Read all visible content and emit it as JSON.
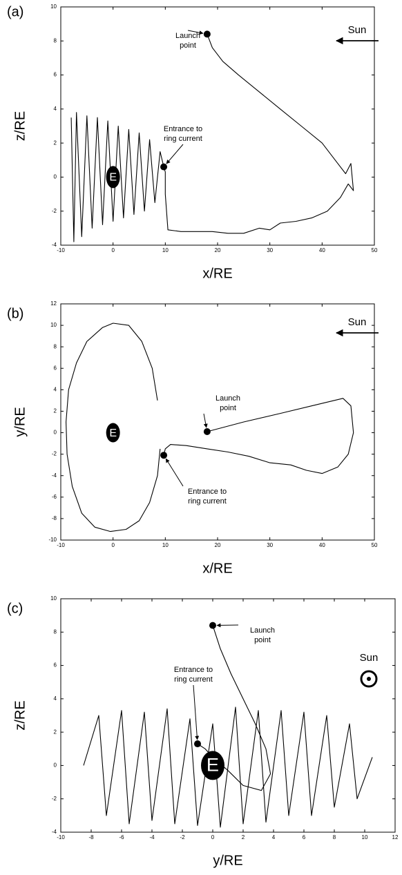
{
  "chart_data": [
    {
      "type": "line",
      "panel": "(a)",
      "xlabel": "x/RE",
      "ylabel": "z/RE",
      "xlim": [
        -10,
        50
      ],
      "ylim": [
        -4,
        10
      ],
      "xticks": [
        -10,
        0,
        10,
        20,
        30,
        40,
        50
      ],
      "yticks": [
        -4,
        -2,
        0,
        2,
        4,
        6,
        8,
        10
      ],
      "series": [
        {
          "color": "#000000",
          "x": [
            18,
            19,
            21,
            24,
            28,
            32,
            36,
            40,
            43,
            44.5,
            45.5,
            46,
            45,
            43.5,
            41,
            38,
            35,
            32,
            30,
            28,
            25,
            22,
            19,
            16,
            13,
            10.5,
            10,
            10,
            9.7
          ],
          "values": [
            8.4,
            7.6,
            6.8,
            6,
            5,
            4,
            3,
            2,
            0.8,
            0.2,
            0.8,
            -0.8,
            -0.4,
            -1.2,
            -2,
            -2.4,
            -2.6,
            -2.7,
            -3.1,
            -3,
            -3.3,
            -3.3,
            -3.2,
            -3.2,
            -3.2,
            -3.1,
            -1,
            0.3,
            0.6
          ]
        },
        {
          "color": "#000000",
          "x": [
            -8,
            -7.5,
            -7,
            -6,
            -5,
            -4,
            -3,
            -2,
            -1,
            0,
            1,
            2,
            3,
            4,
            5,
            6,
            7,
            8,
            9,
            9.7
          ],
          "values": [
            3.5,
            -3.8,
            3.8,
            -3.5,
            3.6,
            -3,
            3.5,
            -2.8,
            3.3,
            -2.6,
            3,
            -2.4,
            2.8,
            -2.2,
            2.6,
            -2,
            2.2,
            -1.5,
            1.5,
            0.6
          ]
        }
      ],
      "markers": {
        "x": [
          18,
          9.7
        ],
        "values": [
          8.4,
          0.6
        ]
      },
      "earth": {
        "x": 0,
        "y": 0,
        "label": "E"
      },
      "annotations": {
        "launch": [
          "Launch",
          "point"
        ],
        "entrance": [
          "Entrance to",
          "ring current"
        ],
        "sun": "Sun"
      }
    },
    {
      "type": "line",
      "panel": "(b)",
      "xlabel": "x/RE",
      "ylabel": "y/RE",
      "xlim": [
        -10,
        50
      ],
      "ylim": [
        -10,
        12
      ],
      "xticks": [
        -10,
        0,
        10,
        20,
        30,
        40,
        50
      ],
      "yticks": [
        -10,
        -8,
        -6,
        -4,
        -2,
        0,
        2,
        4,
        6,
        8,
        10,
        12
      ],
      "series": [
        {
          "color": "#000000",
          "x": [
            18,
            25,
            32,
            38,
            44,
            45.5,
            46,
            45,
            43,
            40,
            37,
            34,
            30,
            26,
            22,
            18,
            14,
            11,
            10,
            9.7
          ],
          "values": [
            0.1,
            1,
            1.8,
            2.5,
            3.2,
            2.5,
            0,
            -2,
            -3.2,
            -3.8,
            -3.5,
            -3,
            -2.8,
            -2.2,
            -1.8,
            -1.5,
            -1.2,
            -1.1,
            -1.5,
            -2.1
          ]
        },
        {
          "color": "#000000",
          "x": [
            9,
            8.5,
            7,
            5,
            2.5,
            -0.5,
            -3.5,
            -6,
            -7.8,
            -8.8,
            -9,
            -8.5,
            -7,
            -5,
            -2,
            0,
            3,
            5.5,
            7.5,
            8.5
          ],
          "values": [
            -1.5,
            -4,
            -6.5,
            -8.2,
            -9,
            -9.2,
            -8.8,
            -7.5,
            -5,
            -2,
            1,
            4,
            6.5,
            8.5,
            9.8,
            10.2,
            10,
            8.5,
            6,
            3
          ]
        }
      ],
      "markers": {
        "x": [
          18,
          9.7
        ],
        "values": [
          0.1,
          -2.1
        ]
      },
      "earth": {
        "x": 0,
        "y": 0,
        "label": "E"
      },
      "annotations": {
        "launch": [
          "Launch",
          "point"
        ],
        "entrance": [
          "Entrance to",
          "ring current"
        ],
        "sun": "Sun"
      }
    },
    {
      "type": "line",
      "panel": "(c)",
      "xlabel": "y/RE",
      "ylabel": "z/RE",
      "xlim": [
        -10,
        12
      ],
      "ylim": [
        -4,
        10
      ],
      "xticks": [
        -10,
        -8,
        -6,
        -4,
        -2,
        0,
        2,
        4,
        6,
        8,
        10,
        12
      ],
      "yticks": [
        -4,
        -2,
        0,
        2,
        4,
        6,
        8,
        10
      ],
      "series": [
        {
          "color": "#000000",
          "x": [
            0,
            0.5,
            1.2,
            2,
            2.8,
            3.5,
            3.8,
            3.2,
            2,
            1,
            0,
            -0.5,
            -1
          ],
          "values": [
            8.4,
            7,
            5.5,
            4,
            2.5,
            1,
            -0.5,
            -1.5,
            -1.2,
            -0.3,
            0.5,
            1,
            1.3
          ]
        },
        {
          "color": "#000000",
          "x": [
            -8.5,
            -7.5,
            -7,
            -6,
            -5.5,
            -4.5,
            -4,
            -3,
            -2.5,
            -1.5,
            -1,
            0,
            0.5,
            1.5,
            2,
            3,
            3.5,
            4.5,
            5,
            6,
            6.5,
            7.5,
            8,
            9,
            9.5,
            10.5
          ],
          "values": [
            0,
            3,
            -3,
            3.3,
            -3.5,
            3.2,
            -3.3,
            3.4,
            -3.5,
            2.8,
            -3.6,
            2.5,
            -3.7,
            3.5,
            -3.5,
            3.3,
            -3.4,
            3.3,
            -3,
            3.2,
            -3,
            3,
            -2.5,
            2.5,
            -2,
            0.5
          ]
        }
      ],
      "markers": {
        "x": [
          0,
          -1
        ],
        "values": [
          8.4,
          1.3
        ]
      },
      "earth": {
        "x": 0,
        "y": 0,
        "label": "E"
      },
      "annotations": {
        "launch": [
          "Launch",
          "point"
        ],
        "entrance": [
          "Entrance to",
          "ring current"
        ],
        "sun": "Sun"
      }
    }
  ]
}
